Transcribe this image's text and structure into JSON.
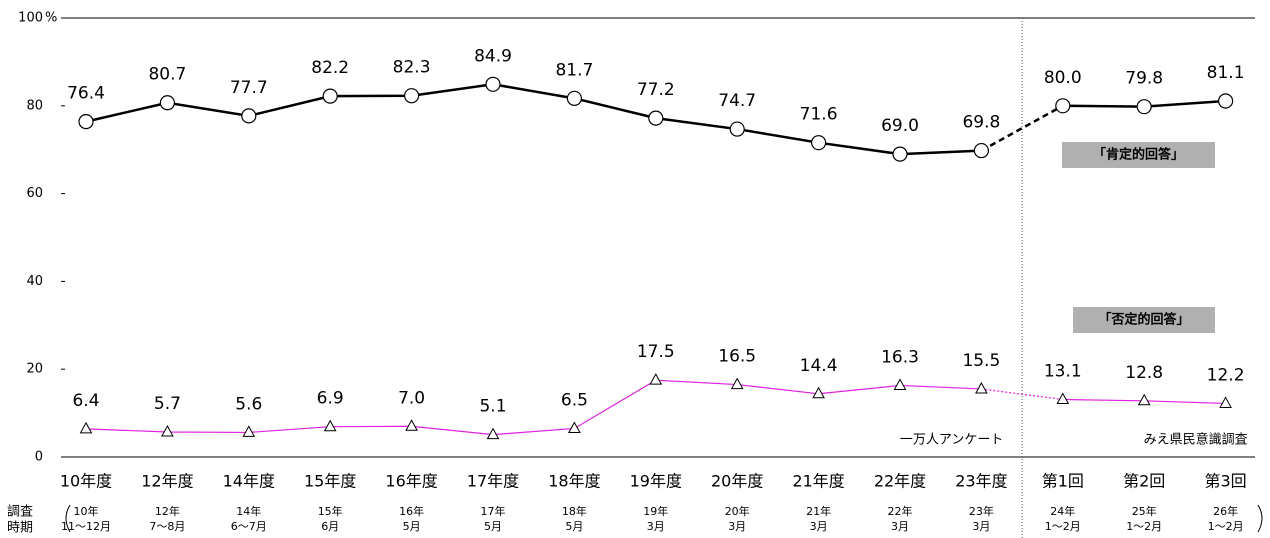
{
  "chart_data": {
    "type": "line",
    "y_unit": "%",
    "categories": [
      "10年度",
      "12年度",
      "14年度",
      "15年度",
      "16年度",
      "17年度",
      "18年度",
      "19年度",
      "20年度",
      "21年度",
      "22年度",
      "23年度",
      "第1回",
      "第2回",
      "第3回"
    ],
    "period_title": [
      "調査",
      "時期"
    ],
    "periods": [
      [
        "10年",
        "11～12月"
      ],
      [
        "12年",
        "7～8月"
      ],
      [
        "14年",
        "6～7月"
      ],
      [
        "15年",
        "6月"
      ],
      [
        "16年",
        "5月"
      ],
      [
        "17年",
        "5月"
      ],
      [
        "18年",
        "5月"
      ],
      [
        "19年",
        "3月"
      ],
      [
        "20年",
        "3月"
      ],
      [
        "21年",
        "3月"
      ],
      [
        "22年",
        "3月"
      ],
      [
        "23年",
        "3月"
      ],
      [
        "24年",
        "1～2月"
      ],
      [
        "25年",
        "1～2月"
      ],
      [
        "26年",
        "1～2月"
      ]
    ],
    "survey_groups": [
      {
        "label": "一万人アンケート",
        "size": 12
      },
      {
        "label": "みえ県民意識調査",
        "size": 3
      }
    ],
    "series": [
      {
        "name": "「肯定的回答」",
        "color": "#000000",
        "marker": "circle",
        "values": [
          76.4,
          80.7,
          77.7,
          82.2,
          82.3,
          84.9,
          81.7,
          77.2,
          74.7,
          71.6,
          69.0,
          69.8,
          80.0,
          79.8,
          81.1
        ],
        "value_labels": [
          "76.4",
          "80.7",
          "77.7",
          "82.2",
          "82.3",
          "84.9",
          "81.7",
          "77.2",
          "74.7",
          "71.6",
          "69.0",
          "69.8",
          "80.0",
          "79.8",
          "81.1"
        ]
      },
      {
        "name": "「否定的回答」",
        "color": "#e020e0",
        "marker": "triangle",
        "values": [
          6.4,
          5.7,
          5.6,
          6.9,
          7.0,
          5.1,
          6.5,
          17.5,
          16.5,
          14.4,
          16.3,
          15.5,
          13.1,
          12.8,
          12.2
        ],
        "value_labels": [
          "6.4",
          "5.7",
          "5.6",
          "6.9",
          "7.0",
          "5.1",
          "6.5",
          "17.5",
          "16.5",
          "14.4",
          "16.3",
          "15.5",
          "13.1",
          "12.8",
          "12.2"
        ]
      }
    ],
    "ylim": [
      0,
      100
    ],
    "yticks": [
      0,
      20,
      40,
      60,
      80,
      100
    ]
  }
}
